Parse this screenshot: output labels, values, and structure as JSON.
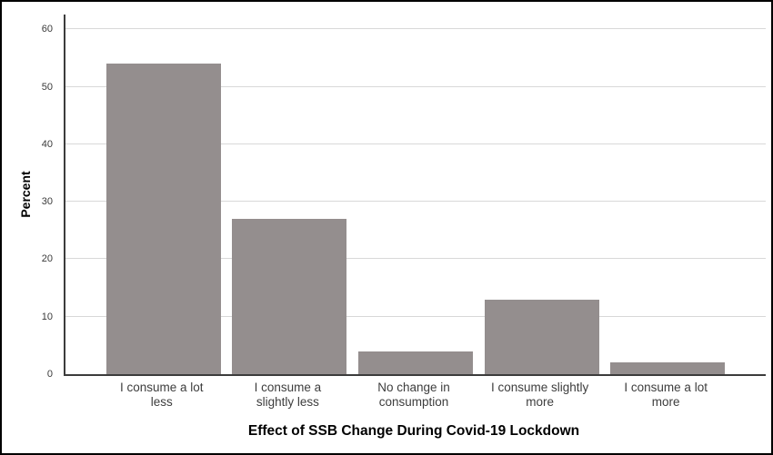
{
  "chart_data": {
    "type": "bar",
    "title": "",
    "xlabel": "Effect of SSB Change During Covid-19 Lockdown",
    "ylabel": "Percent",
    "categories": [
      "I consume a lot less",
      "I consume a slightly less",
      "No change in consumption",
      "I consume slightly more",
      "I consume a lot more"
    ],
    "category_lines": [
      [
        "I consume a lot",
        "less"
      ],
      [
        "I consume a",
        "slightly less"
      ],
      [
        "No change in",
        "consumption"
      ],
      [
        "I consume slightly",
        "more"
      ],
      [
        "I consume a lot",
        "more"
      ]
    ],
    "values": [
      54,
      27,
      4,
      13,
      2
    ],
    "yticks": [
      0,
      10,
      20,
      30,
      40,
      50,
      60
    ],
    "ylim": [
      0,
      62.6
    ],
    "grid": true,
    "legend_position": "none",
    "bar_color": "#948E8E",
    "gridline_color": "#D8D8D8",
    "axis_color": "#3C3C3C",
    "frame_color": "#000000"
  }
}
